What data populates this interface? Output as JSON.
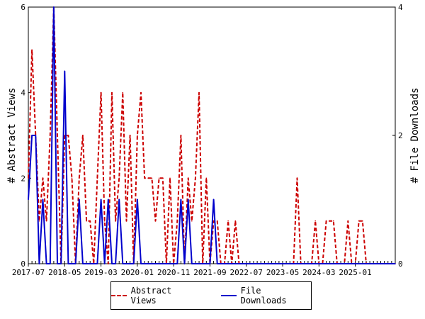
{
  "chart_data": {
    "type": "line",
    "xlabel": "",
    "ylabel": "# Abstract Views",
    "y2label": "# File Downloads",
    "ylim": [
      0,
      6
    ],
    "y2lim": [
      0,
      4
    ],
    "yticks": [
      "0",
      "2",
      "4",
      "6"
    ],
    "y2ticks": [
      "0",
      "2",
      "4"
    ],
    "x_start": "2017-07",
    "x_end": "2025-12",
    "xtick_labels": [
      "2017-07",
      "2018-05",
      "2019-03",
      "2020-01",
      "2020-11",
      "2021-09",
      "2022-07",
      "2023-05",
      "2024-03",
      "2025-01"
    ],
    "grid": false,
    "legend_position": "bottom",
    "series": [
      {
        "name": "Abstract Views",
        "axis": "left",
        "color": "#cc0000",
        "style": "dashed",
        "x": [
          "2017-07",
          "2017-08",
          "2017-09",
          "2017-10",
          "2017-11",
          "2017-12",
          "2018-01",
          "2018-02",
          "2018-03",
          "2018-04",
          "2018-05",
          "2018-06",
          "2018-07",
          "2018-08",
          "2018-09",
          "2018-10",
          "2018-11",
          "2018-12",
          "2019-01",
          "2019-02",
          "2019-03",
          "2019-04",
          "2019-05",
          "2019-06",
          "2019-07",
          "2019-08",
          "2019-09",
          "2019-10",
          "2019-11",
          "2019-12",
          "2020-01",
          "2020-02",
          "2020-03",
          "2020-04",
          "2020-05",
          "2020-06",
          "2020-07",
          "2020-08",
          "2020-09",
          "2020-10",
          "2020-11",
          "2020-12",
          "2021-01",
          "2021-02",
          "2021-03",
          "2021-04",
          "2021-05",
          "2021-06",
          "2021-07",
          "2021-08",
          "2021-09",
          "2021-10",
          "2021-11",
          "2021-12",
          "2022-01",
          "2022-02",
          "2022-03",
          "2022-04",
          "2022-05",
          "2022-06",
          "2022-07",
          "2022-08",
          "2022-09",
          "2022-10",
          "2022-11",
          "2022-12",
          "2023-01",
          "2023-02",
          "2023-03",
          "2023-04",
          "2023-05",
          "2023-06",
          "2023-07",
          "2023-08",
          "2023-09",
          "2023-10",
          "2023-11",
          "2023-12",
          "2024-01",
          "2024-02",
          "2024-03",
          "2024-04",
          "2024-05",
          "2024-06",
          "2024-07",
          "2024-08",
          "2024-09",
          "2024-10",
          "2024-11",
          "2024-12",
          "2025-01",
          "2025-02",
          "2025-03",
          "2025-04",
          "2025-05",
          "2025-06",
          "2025-07",
          "2025-08",
          "2025-09",
          "2025-10",
          "2025-11",
          "2025-12"
        ],
        "values": [
          2,
          5,
          3,
          1,
          2,
          1,
          3,
          6,
          3,
          0,
          3,
          3,
          2,
          0,
          2,
          3,
          1,
          1,
          0,
          2,
          4,
          1,
          0,
          4,
          1,
          2,
          4,
          1,
          3,
          0,
          3,
          4,
          2,
          2,
          2,
          1,
          2,
          2,
          0,
          2,
          0,
          1,
          3,
          0,
          2,
          1,
          2,
          4,
          0,
          2,
          0,
          1,
          1,
          0,
          0,
          1,
          0,
          1,
          0,
          0,
          0,
          0,
          0,
          0,
          0,
          0,
          0,
          0,
          0,
          0,
          0,
          0,
          0,
          0,
          2,
          0,
          0,
          0,
          0,
          1,
          0,
          0,
          1,
          1,
          1,
          0,
          0,
          0,
          1,
          0,
          0,
          1,
          1,
          0,
          0,
          0,
          0,
          0,
          0,
          0,
          0,
          0
        ]
      },
      {
        "name": "File Downloads",
        "axis": "right",
        "color": "#0000cc",
        "style": "solid",
        "x": [
          "2017-07",
          "2017-08",
          "2017-09",
          "2017-10",
          "2017-11",
          "2017-12",
          "2018-01",
          "2018-02",
          "2018-03",
          "2018-04",
          "2018-05",
          "2018-06",
          "2018-07",
          "2018-08",
          "2018-09",
          "2018-10",
          "2018-11",
          "2018-12",
          "2019-01",
          "2019-02",
          "2019-03",
          "2019-04",
          "2019-05",
          "2019-06",
          "2019-07",
          "2019-08",
          "2019-09",
          "2019-10",
          "2019-11",
          "2019-12",
          "2020-01",
          "2020-02",
          "2020-03",
          "2020-04",
          "2020-05",
          "2020-06",
          "2020-07",
          "2020-08",
          "2020-09",
          "2020-10",
          "2020-11",
          "2020-12",
          "2021-01",
          "2021-02",
          "2021-03",
          "2021-04",
          "2021-05",
          "2021-06",
          "2021-07",
          "2021-08",
          "2021-09",
          "2021-10",
          "2021-11",
          "2021-12",
          "2022-01",
          "2022-02",
          "2022-03",
          "2022-04",
          "2022-05",
          "2022-06",
          "2022-07",
          "2022-08",
          "2022-09",
          "2022-10",
          "2022-11",
          "2022-12",
          "2023-01",
          "2023-02",
          "2023-03",
          "2023-04",
          "2023-05",
          "2023-06",
          "2023-07",
          "2023-08",
          "2023-09",
          "2023-10",
          "2023-11",
          "2023-12",
          "2024-01",
          "2024-02",
          "2024-03",
          "2024-04",
          "2024-05",
          "2024-06",
          "2024-07",
          "2024-08",
          "2024-09",
          "2024-10",
          "2024-11",
          "2024-12",
          "2025-01",
          "2025-02",
          "2025-03",
          "2025-04",
          "2025-05",
          "2025-06",
          "2025-07",
          "2025-08",
          "2025-09",
          "2025-10",
          "2025-11",
          "2025-12"
        ],
        "values": [
          1,
          2,
          2,
          0,
          1,
          0,
          0,
          4,
          0,
          0,
          3,
          0,
          0,
          0,
          1,
          0,
          0,
          0,
          0,
          0,
          1,
          0,
          1,
          0,
          0,
          1,
          0,
          0,
          0,
          0,
          1,
          0,
          0,
          0,
          0,
          0,
          0,
          0,
          0,
          0,
          0,
          0,
          1,
          0,
          1,
          0,
          0,
          0,
          0,
          0,
          0,
          1,
          0,
          0,
          0,
          0,
          0,
          0,
          0,
          0,
          0,
          0,
          0,
          0,
          0,
          0,
          0,
          0,
          0,
          0,
          0,
          0,
          0,
          0,
          0,
          0,
          0,
          0,
          0,
          0,
          0,
          0,
          0,
          0,
          0,
          0,
          0,
          0,
          0,
          0,
          0,
          0,
          0,
          0,
          0,
          0,
          0,
          0,
          0,
          0,
          0,
          0
        ]
      }
    ]
  }
}
